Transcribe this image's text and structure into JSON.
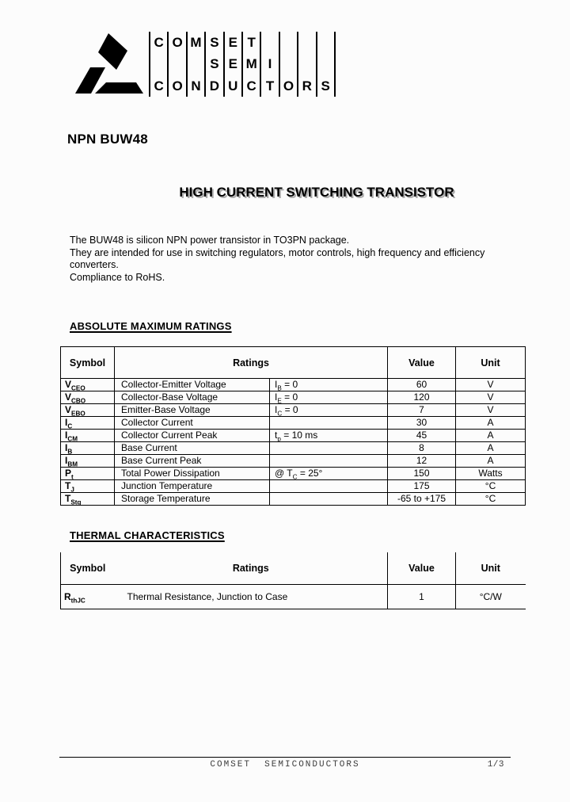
{
  "colors": {
    "ink": "#000000",
    "paper": "#fcfcfc",
    "title_shadow": "#ababab",
    "footer_text": "#3d3d3d"
  },
  "logo": {
    "rows": [
      [
        "C",
        "O",
        "M",
        "S",
        "E",
        "T",
        "",
        "",
        "",
        ""
      ],
      [
        "",
        "",
        "",
        "S",
        "E",
        "M",
        "I",
        "",
        "",
        ""
      ],
      [
        "C",
        "O",
        "N",
        "D",
        "U",
        "C",
        "T",
        "O",
        "R",
        "S"
      ]
    ]
  },
  "header": {
    "part_title": "NPN BUW48",
    "doc_title": "HIGH CURRENT SWITCHING TRANSISTOR"
  },
  "description": {
    "text": "The BUW48 is silicon NPN power transistor in TO3PN package.\nThey are intended for use in switching regulators, motor controls, high frequency and efficiency\nconverters.\nCompliance to RoHS."
  },
  "abs_max": {
    "heading": "ABSOLUTE MAXIMUM RATINGS",
    "columns": {
      "symbol": "Symbol",
      "ratings": "Ratings",
      "value": "Value",
      "unit": "Unit"
    },
    "rows": [
      {
        "sym": "V",
        "sub": "CEO",
        "rating": "Collector-Emitter Voltage",
        "cond_pre": "I",
        "cond_sub": "B",
        "cond_post": " = 0",
        "value": "60",
        "unit": "V"
      },
      {
        "sym": "V",
        "sub": "CBO",
        "rating": "Collector-Base Voltage",
        "cond_pre": "I",
        "cond_sub": "E",
        "cond_post": " = 0",
        "value": "120",
        "unit": "V"
      },
      {
        "sym": "V",
        "sub": "EBO",
        "rating": "Emitter-Base Voltage",
        "cond_pre": "I",
        "cond_sub": "C",
        "cond_post": " = 0",
        "value": "7",
        "unit": "V"
      },
      {
        "sym": "I",
        "sub": "C",
        "rating": "Collector Current",
        "cond_pre": "",
        "cond_sub": "",
        "cond_post": "",
        "value": "30",
        "unit": "A"
      },
      {
        "sym": "I",
        "sub": "CM",
        "rating": "Collector Current Peak",
        "cond_pre": "t",
        "cond_sub": "p",
        "cond_post": " = 10 ms",
        "value": "45",
        "unit": "A"
      },
      {
        "sym": "I",
        "sub": "B",
        "rating": "Base Current",
        "cond_pre": "",
        "cond_sub": "",
        "cond_post": "",
        "value": "8",
        "unit": "A"
      },
      {
        "sym": "I",
        "sub": "BM",
        "rating": "Base Current Peak",
        "cond_pre": "",
        "cond_sub": "",
        "cond_post": "",
        "value": "12",
        "unit": "A"
      },
      {
        "sym": "P",
        "sub": "t",
        "rating": "Total Power Dissipation",
        "cond_pre": "@ T",
        "cond_sub": "C",
        "cond_post": " = 25°",
        "value": "150",
        "unit": "Watts"
      },
      {
        "sym": "T",
        "sub": "J",
        "rating": "Junction Temperature",
        "cond_pre": "",
        "cond_sub": "",
        "cond_post": "",
        "value": "175",
        "unit": "°C"
      },
      {
        "sym": "T",
        "sub": "Stg",
        "rating": "Storage Temperature",
        "cond_pre": "",
        "cond_sub": "",
        "cond_post": "",
        "value": "-65 to +175",
        "unit": "°C"
      }
    ]
  },
  "thermal": {
    "heading": "THERMAL CHARACTERISTICS",
    "columns": {
      "symbol": "Symbol",
      "ratings": "Ratings",
      "value": "Value",
      "unit": "Unit"
    },
    "row": {
      "sym": "R",
      "sub": "thJC",
      "rating": "Thermal Resistance, Junction to Case",
      "value": "1",
      "unit": "°C/W"
    }
  },
  "footer": {
    "company": "COMSET  SEMICONDUCTORS",
    "page": "1/3"
  }
}
